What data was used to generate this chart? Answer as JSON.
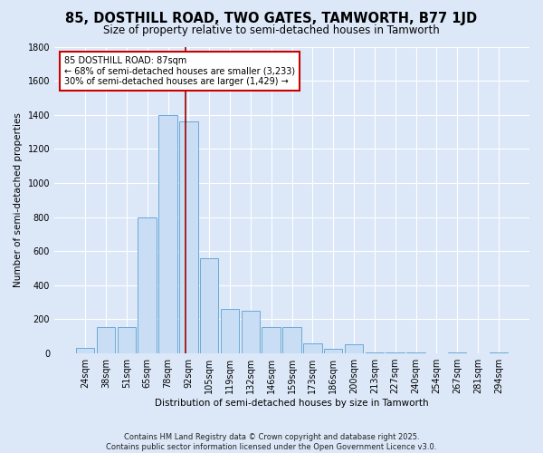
{
  "title": "85, DOSTHILL ROAD, TWO GATES, TAMWORTH, B77 1JD",
  "subtitle": "Size of property relative to semi-detached houses in Tamworth",
  "xlabel": "Distribution of semi-detached houses by size in Tamworth",
  "ylabel": "Number of semi-detached properties",
  "categories": [
    "24sqm",
    "38sqm",
    "51sqm",
    "65sqm",
    "78sqm",
    "92sqm",
    "105sqm",
    "119sqm",
    "132sqm",
    "146sqm",
    "159sqm",
    "173sqm",
    "186sqm",
    "200sqm",
    "213sqm",
    "227sqm",
    "240sqm",
    "254sqm",
    "267sqm",
    "281sqm",
    "294sqm"
  ],
  "values": [
    30,
    155,
    155,
    800,
    1400,
    1360,
    560,
    260,
    250,
    155,
    155,
    60,
    25,
    55,
    5,
    5,
    5,
    0,
    5,
    0,
    5
  ],
  "bar_color": "#c9ddf5",
  "bar_edge_color": "#6aaad4",
  "vline_color": "#990000",
  "annotation_text": "85 DOSTHILL ROAD: 87sqm\n← 68% of semi-detached houses are smaller (3,233)\n30% of semi-detached houses are larger (1,429) →",
  "annotation_box_color": "#ffffff",
  "annotation_box_edge": "#cc0000",
  "background_color": "#dce8f8",
  "plot_bg_color": "#dce8f8",
  "footer": "Contains HM Land Registry data © Crown copyright and database right 2025.\nContains public sector information licensed under the Open Government Licence v3.0.",
  "ylim": [
    0,
    1800
  ],
  "yticks": [
    0,
    200,
    400,
    600,
    800,
    1000,
    1200,
    1400,
    1600,
    1800
  ],
  "title_fontsize": 10.5,
  "subtitle_fontsize": 8.5,
  "axis_label_fontsize": 7.5,
  "tick_fontsize": 7,
  "annotation_fontsize": 7,
  "footer_fontsize": 6
}
